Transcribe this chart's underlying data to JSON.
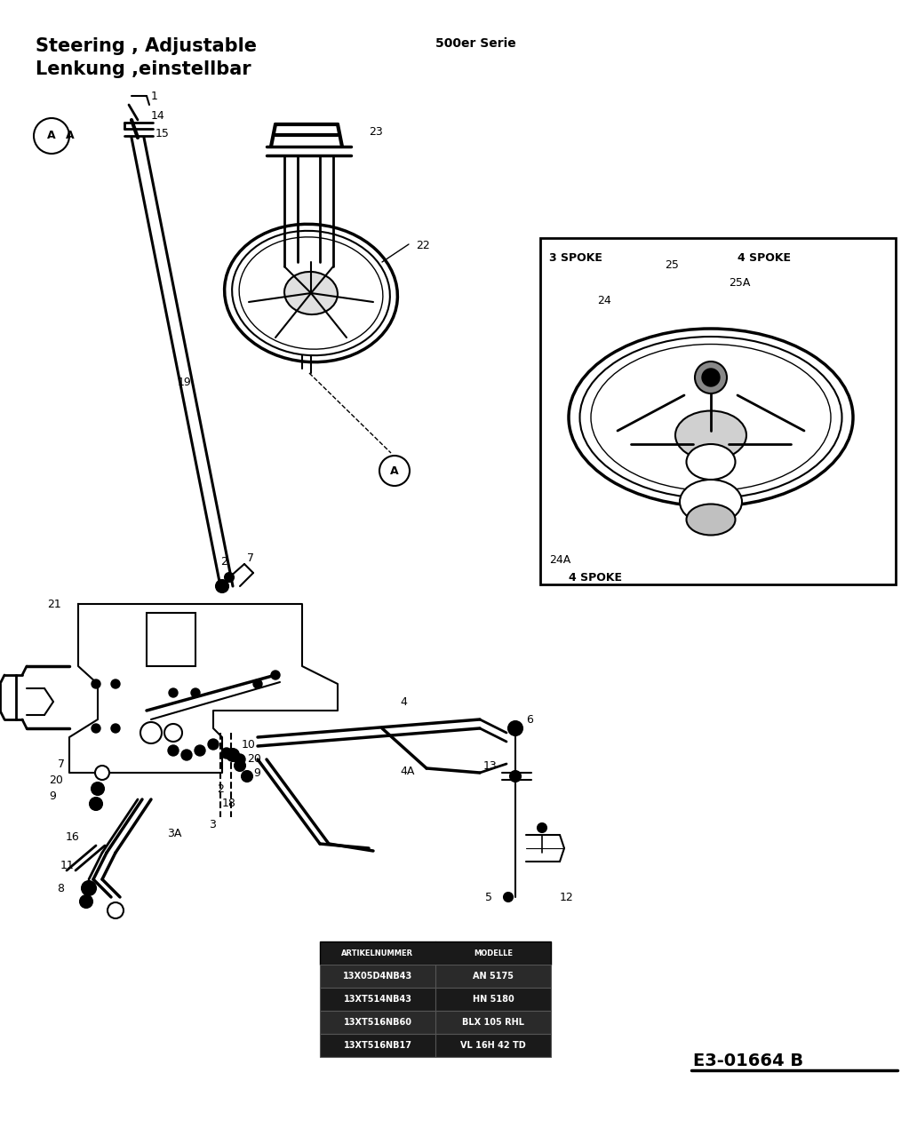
{
  "title_line1": "Steering , Adjustable",
  "title_line2": "Lenkung ,einstellbar",
  "subtitle": "500er Serie",
  "diagram_ref": "E3-01664 B",
  "bg_color": "#ffffff",
  "table_header": [
    "ARTIKELNUMMER",
    "MODELLE"
  ],
  "table_rows": [
    [
      "13X05D4NB43",
      "AN 5175"
    ],
    [
      "13XT514NB43",
      "HN 5180"
    ],
    [
      "13XT516NB60",
      "BLX 105 RHL"
    ],
    [
      "13XT516NB17",
      "VL 16H 42 TD"
    ]
  ]
}
